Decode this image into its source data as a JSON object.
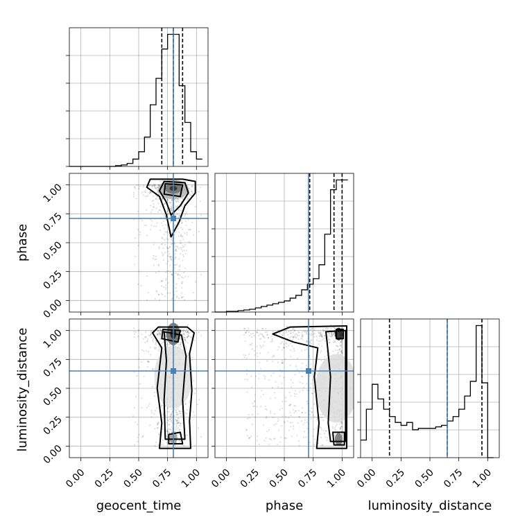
{
  "chart_data": {
    "type": "corner",
    "parameters": [
      "geocent_time",
      "phase",
      "luminosity_distance"
    ],
    "axis_range": [
      -0.1,
      1.1
    ],
    "ticks": [
      0.0,
      0.25,
      0.5,
      0.75,
      1.0
    ],
    "tick_labels": [
      "0.00",
      "0.25",
      "0.50",
      "0.75",
      "1.00"
    ],
    "truths": {
      "geocent_time": 0.8,
      "phase": 0.71,
      "luminosity_distance": 0.65
    },
    "quantiles": {
      "geocent_time": [
        0.7,
        0.8,
        0.88
      ],
      "phase": [
        0.72,
        0.93,
        1.0
      ],
      "luminosity_distance": [
        0.15,
        0.65,
        0.95
      ]
    },
    "histograms": {
      "geocent_time": {
        "edges": [
          -0.1,
          0.0,
          0.1,
          0.2,
          0.3,
          0.35,
          0.4,
          0.45,
          0.5,
          0.55,
          0.6,
          0.65,
          0.7,
          0.75,
          0.8,
          0.85,
          0.9,
          0.95,
          1.0,
          1.05
        ],
        "counts": [
          0,
          0,
          0,
          0,
          0.005,
          0.01,
          0.02,
          0.05,
          0.1,
          0.2,
          0.42,
          0.6,
          0.8,
          0.9,
          0.9,
          0.55,
          0.3,
          0.1,
          0.05
        ]
      },
      "phase": {
        "edges": [
          -0.1,
          0.0,
          0.1,
          0.15,
          0.2,
          0.25,
          0.3,
          0.35,
          0.4,
          0.45,
          0.5,
          0.55,
          0.6,
          0.65,
          0.7,
          0.75,
          0.8,
          0.85,
          0.9,
          0.95,
          1.0,
          1.05
        ],
        "counts": [
          0,
          0.005,
          0.01,
          0.015,
          0.02,
          0.03,
          0.04,
          0.05,
          0.06,
          0.07,
          0.08,
          0.1,
          0.12,
          0.16,
          0.2,
          0.24,
          0.34,
          0.56,
          0.88,
          0.95,
          0.95
        ]
      },
      "luminosity_distance": {
        "edges": [
          -0.1,
          -0.05,
          0.0,
          0.05,
          0.1,
          0.15,
          0.2,
          0.25,
          0.3,
          0.35,
          0.4,
          0.45,
          0.5,
          0.55,
          0.6,
          0.65,
          0.7,
          0.75,
          0.8,
          0.85,
          0.9,
          0.95,
          1.0,
          1.05
        ],
        "counts": [
          0.12,
          0.33,
          0.5,
          0.4,
          0.33,
          0.28,
          0.24,
          0.22,
          0.24,
          0.19,
          0.2,
          0.2,
          0.2,
          0.21,
          0.22,
          0.25,
          0.28,
          0.33,
          0.42,
          0.52,
          0.9,
          0.51,
          0
        ]
      }
    },
    "contour_levels": [
      {
        "pair": [
          "geocent_time",
          "phase"
        ],
        "levels": [
          [
            [
              0.78,
              0.55
            ],
            [
              0.85,
              0.68
            ],
            [
              0.9,
              0.82
            ],
            [
              0.99,
              0.93
            ],
            [
              0.99,
              1.03
            ],
            [
              0.88,
              1.05
            ],
            [
              0.6,
              1.05
            ],
            [
              0.57,
              0.98
            ],
            [
              0.68,
              0.9
            ],
            [
              0.74,
              0.74
            ]
          ],
          [
            [
              0.78,
              0.74
            ],
            [
              0.86,
              0.82
            ],
            [
              0.93,
              0.93
            ],
            [
              0.9,
              1.02
            ],
            [
              0.72,
              1.03
            ],
            [
              0.68,
              0.95
            ],
            [
              0.74,
              0.85
            ]
          ],
          [
            [
              0.72,
              0.92
            ],
            [
              0.86,
              0.9
            ],
            [
              0.88,
              1.0
            ],
            [
              0.73,
              1.01
            ]
          ]
        ]
      },
      {
        "pair": [
          "geocent_time",
          "luminosity_distance"
        ],
        "levels": [
          [
            [
              0.68,
              -0.02
            ],
            [
              0.95,
              -0.02
            ],
            [
              0.94,
              0.22
            ],
            [
              0.96,
              0.48
            ],
            [
              0.94,
              0.8
            ],
            [
              0.98,
              0.98
            ],
            [
              0.92,
              1.03
            ],
            [
              0.67,
              1.03
            ],
            [
              0.62,
              0.98
            ],
            [
              0.7,
              0.85
            ],
            [
              0.66,
              0.5
            ],
            [
              0.7,
              0.2
            ]
          ],
          [
            [
              0.73,
              0.06
            ],
            [
              0.9,
              0.06
            ],
            [
              0.88,
              0.4
            ],
            [
              0.91,
              0.78
            ],
            [
              0.87,
              0.96
            ],
            [
              0.72,
              0.99
            ],
            [
              0.74,
              0.74
            ],
            [
              0.72,
              0.4
            ]
          ],
          [
            [
              0.7,
              0.93
            ],
            [
              0.84,
              0.9
            ],
            [
              0.86,
              1.0
            ],
            [
              0.71,
              1.01
            ]
          ],
          [
            [
              0.76,
              0.02
            ],
            [
              0.88,
              0.02
            ],
            [
              0.86,
              0.12
            ],
            [
              0.76,
              0.1
            ]
          ]
        ]
      },
      {
        "pair": [
          "phase",
          "luminosity_distance"
        ],
        "levels": [
          [
            [
              0.78,
              -0.02
            ],
            [
              1.04,
              -0.02
            ],
            [
              1.04,
              1.04
            ],
            [
              0.55,
              1.03
            ],
            [
              0.4,
              0.97
            ],
            [
              0.58,
              0.9
            ],
            [
              0.79,
              0.85
            ],
            [
              0.76,
              0.6
            ],
            [
              0.8,
              0.2
            ]
          ],
          [
            [
              0.9,
              0.04
            ],
            [
              1.03,
              0.04
            ],
            [
              1.03,
              1.0
            ],
            [
              0.86,
              0.99
            ],
            [
              0.87,
              0.9
            ],
            [
              0.9,
              0.6
            ],
            [
              0.88,
              0.2
            ]
          ],
          [
            [
              0.93,
              0.01
            ],
            [
              1.02,
              0.01
            ],
            [
              1.02,
              0.12
            ],
            [
              0.92,
              0.12
            ]
          ],
          [
            [
              0.95,
              0.93
            ],
            [
              1.01,
              0.93
            ],
            [
              1.01,
              1.01
            ],
            [
              0.95,
              1.01
            ]
          ]
        ]
      }
    ],
    "truth_color": "#4682b4",
    "line_color": "#000000",
    "grid": true
  }
}
